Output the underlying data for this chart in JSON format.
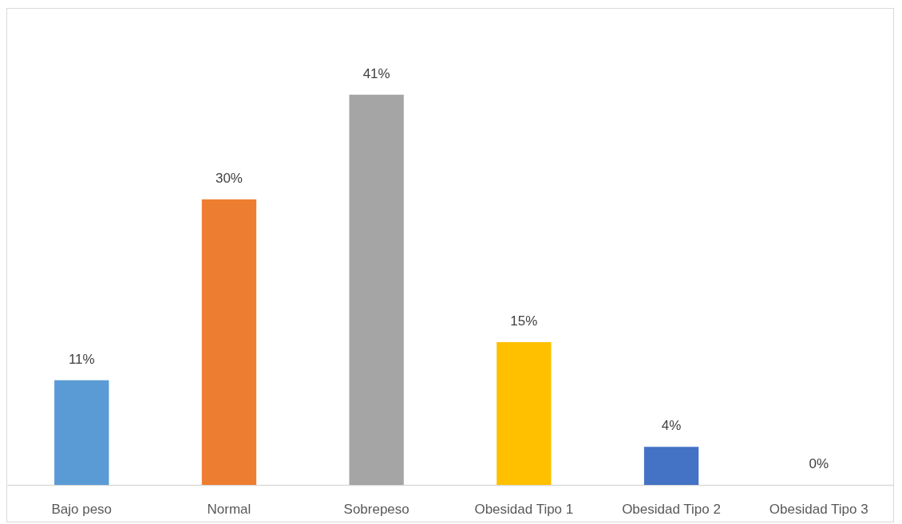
{
  "chart_data": {
    "type": "bar",
    "categories": [
      "Bajo peso",
      "Normal",
      "Sobrepeso",
      "Obesidad Tipo 1",
      "Obesidad Tipo 2",
      "Obesidad Tipo 3"
    ],
    "values": [
      11,
      30,
      41,
      15,
      4,
      0
    ],
    "value_labels": [
      "11%",
      "30%",
      "41%",
      "15%",
      "4%",
      "0%"
    ],
    "colors": [
      "#5b9bd5",
      "#ed7d31",
      "#a5a5a5",
      "#ffc000",
      "#4472c4",
      "#70ad47"
    ]
  }
}
